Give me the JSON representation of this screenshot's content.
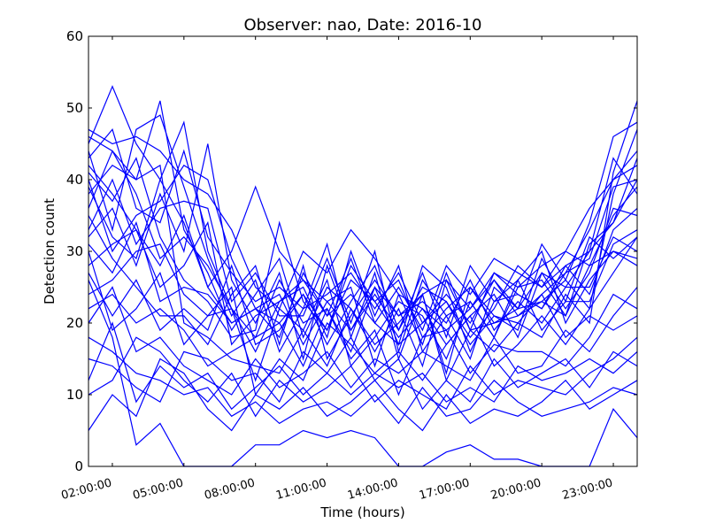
{
  "chart_data": {
    "type": "line",
    "title": "Observer: nao, Date: 2016-10",
    "xlabel": "Time (hours)",
    "ylabel": "Detection count",
    "ylim": [
      0,
      60
    ],
    "xlim": [
      1,
      24
    ],
    "yticks": [
      0,
      10,
      20,
      30,
      40,
      50,
      60
    ],
    "xticks": [
      {
        "x": 2,
        "label": "02:00:00"
      },
      {
        "x": 5,
        "label": "05:00:00"
      },
      {
        "x": 8,
        "label": "08:00:00"
      },
      {
        "x": 11,
        "label": "11:00:00"
      },
      {
        "x": 14,
        "label": "14:00:00"
      },
      {
        "x": 17,
        "label": "17:00:00"
      },
      {
        "x": 20,
        "label": "20:00:00"
      },
      {
        "x": 23,
        "label": "23:00:00"
      }
    ],
    "line_color": "#0000ff",
    "grid": false,
    "x": [
      1,
      2,
      3,
      4,
      5,
      6,
      7,
      8,
      9,
      10,
      11,
      12,
      13,
      14,
      15,
      16,
      17,
      18,
      19,
      20,
      21,
      22,
      23,
      24
    ],
    "series": [
      {
        "values": [
          47,
          45,
          46,
          44,
          40,
          38,
          33,
          25,
          22,
          30,
          27,
          33,
          29,
          24,
          22,
          19,
          22,
          26,
          21,
          24,
          27,
          33,
          40,
          44
        ]
      },
      {
        "values": [
          45,
          53,
          45,
          40,
          48,
          30,
          22,
          18,
          26,
          20,
          22,
          16,
          25,
          21,
          24,
          26,
          22,
          27,
          25,
          28,
          30,
          36,
          40,
          42
        ]
      },
      {
        "values": [
          42,
          38,
          33,
          28,
          35,
          25,
          20,
          22,
          20,
          24,
          19,
          28,
          23,
          26,
          18,
          22,
          25,
          20,
          22,
          27,
          25,
          30,
          34,
          40
        ]
      },
      {
        "values": [
          40,
          30,
          35,
          37,
          42,
          40,
          29,
          22,
          18,
          27,
          21,
          24,
          20,
          17,
          20,
          23,
          18,
          22,
          28,
          25,
          30,
          28,
          35,
          39
        ]
      },
      {
        "values": [
          44,
          33,
          47,
          49,
          39,
          29,
          21,
          26,
          16,
          22,
          31,
          18,
          27,
          15,
          24,
          13,
          25,
          21,
          19,
          29,
          23,
          32,
          29,
          32
        ]
      },
      {
        "values": [
          38,
          42,
          40,
          51,
          33,
          27,
          19,
          24,
          29,
          18,
          25,
          22,
          16,
          22,
          14,
          26,
          19,
          27,
          24,
          22,
          28,
          24,
          33,
          36
        ]
      },
      {
        "values": [
          32,
          36,
          28,
          38,
          30,
          45,
          26,
          20,
          27,
          15,
          28,
          19,
          24,
          19,
          27,
          18,
          28,
          23,
          26,
          30,
          20,
          26,
          30,
          29
        ]
      },
      {
        "values": [
          28,
          31,
          33,
          25,
          28,
          34,
          17,
          21,
          23,
          25,
          18,
          30,
          21,
          28,
          16,
          21,
          15,
          25,
          22,
          23,
          26,
          22,
          38,
          47
        ]
      },
      {
        "values": [
          24,
          26,
          30,
          31,
          24,
          21,
          22,
          12,
          22,
          19,
          26,
          14,
          18,
          23,
          21,
          15,
          23,
          18,
          25,
          26,
          21,
          28,
          30,
          28
        ]
      },
      {
        "values": [
          36,
          44,
          40,
          42,
          20,
          18,
          15,
          14,
          13,
          19,
          14,
          22,
          17,
          20,
          24,
          12,
          19,
          16,
          20,
          18,
          24,
          20,
          41,
          51
        ]
      },
      {
        "values": [
          30,
          19,
          22,
          27,
          17,
          21,
          25,
          10,
          15,
          12,
          20,
          17,
          13,
          16,
          12,
          17,
          21,
          14,
          17,
          21,
          17,
          22,
          27,
          32
        ]
      },
      {
        "values": [
          20,
          25,
          16,
          18,
          14,
          12,
          10,
          15,
          11,
          13,
          16,
          11,
          15,
          13,
          16,
          14,
          12,
          18,
          13,
          14,
          19,
          16,
          21,
          25
        ]
      },
      {
        "values": [
          10,
          12,
          18,
          16,
          12,
          9,
          13,
          7,
          12,
          9,
          11,
          14,
          9,
          12,
          10,
          8,
          14,
          10,
          12,
          11,
          10,
          13,
          15,
          18
        ]
      },
      {
        "values": [
          5,
          10,
          7,
          15,
          13,
          8,
          5,
          10,
          8,
          11,
          7,
          9,
          12,
          8,
          5,
          10,
          6,
          8,
          7,
          9,
          12,
          8,
          10,
          12
        ]
      },
      {
        "values": [
          26,
          18,
          3,
          6,
          0,
          0,
          0,
          3,
          3,
          5,
          4,
          5,
          4,
          0,
          0,
          2,
          3,
          1,
          1,
          0,
          0,
          0,
          8,
          4
        ]
      },
      {
        "values": [
          46,
          44,
          38,
          29,
          32,
          28,
          22,
          16,
          23,
          26,
          21,
          29,
          20,
          25,
          19,
          28,
          24,
          29,
          27,
          25,
          28,
          30,
          43,
          38
        ]
      },
      {
        "values": [
          41,
          37,
          43,
          32,
          26,
          23,
          18,
          19,
          34,
          23,
          19,
          26,
          23,
          18,
          22,
          17,
          21,
          24,
          18,
          27,
          22,
          27,
          36,
          35
        ]
      },
      {
        "values": [
          35,
          29,
          25,
          21,
          21,
          17,
          24,
          28,
          17,
          28,
          15,
          21,
          26,
          21,
          23,
          20,
          26,
          19,
          23,
          20,
          25,
          25,
          32,
          30
        ]
      },
      {
        "values": [
          22,
          24,
          20,
          22,
          19,
          14,
          16,
          18,
          20,
          14,
          22,
          15,
          19,
          10,
          18,
          19,
          13,
          17,
          16,
          16,
          14,
          18,
          24,
          22
        ]
      },
      {
        "values": [
          15,
          14,
          11,
          9,
          16,
          15,
          12,
          13,
          9,
          16,
          13,
          18,
          12,
          15,
          8,
          12,
          9,
          15,
          11,
          13,
          15,
          11,
          16,
          14
        ]
      },
      {
        "values": [
          27,
          21,
          26,
          19,
          22,
          19,
          28,
          17,
          19,
          24,
          17,
          23,
          28,
          19,
          25,
          23,
          17,
          21,
          20,
          24,
          18,
          21,
          19,
          21
        ]
      },
      {
        "values": [
          43,
          47,
          36,
          34,
          44,
          32,
          27,
          23,
          25,
          22,
          24,
          27,
          22,
          27,
          20,
          24,
          20,
          26,
          22,
          31,
          26,
          34,
          46,
          48
        ]
      },
      {
        "values": [
          33,
          40,
          31,
          36,
          37,
          36,
          23,
          27,
          21,
          21,
          29,
          20,
          30,
          16,
          26,
          21,
          23,
          18,
          26,
          19,
          23,
          23,
          31,
          33
        ]
      },
      {
        "values": [
          18,
          16,
          13,
          12,
          10,
          11,
          7,
          9,
          6,
          8,
          9,
          7,
          10,
          6,
          11,
          7,
          8,
          12,
          9,
          7,
          8,
          9,
          11,
          10
        ]
      },
      {
        "values": [
          39,
          32,
          29,
          40,
          34,
          25,
          30,
          39,
          30,
          26,
          23,
          19,
          25,
          17,
          28,
          25,
          16,
          23,
          24,
          22,
          27,
          29,
          39,
          40
        ]
      },
      {
        "values": [
          31,
          27,
          34,
          23,
          25,
          24,
          20,
          22,
          24,
          17,
          23,
          25,
          14,
          24,
          17,
          27,
          19,
          20,
          21,
          23,
          21,
          31,
          34,
          43
        ]
      },
      {
        "values": [
          12,
          20,
          9,
          14,
          11,
          13,
          8,
          11,
          14,
          10,
          13,
          10,
          13,
          11,
          13,
          9,
          11,
          9,
          14,
          12,
          13,
          15,
          13,
          16
        ]
      }
    ]
  }
}
